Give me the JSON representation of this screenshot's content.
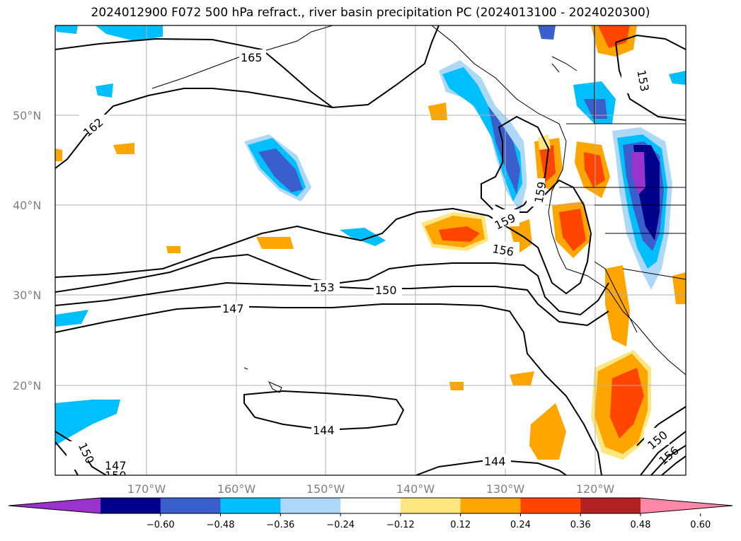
{
  "title": "2024012900 F072 500 hPa refract., river basin precipitation PC (2024013100 - 2024020300)",
  "lat_labels": [
    "50°N",
    "40°N",
    "30°N",
    "20°N"
  ],
  "lon_labels": [
    "170°W",
    "160°W",
    "150°W",
    "140°W",
    "130°W",
    "120°W"
  ],
  "contour_labels": [
    "165",
    "162",
    "153",
    "159",
    "159",
    "156",
    "153",
    "150",
    "147",
    "144",
    "144",
    "150",
    "147",
    "150",
    "150",
    "156"
  ],
  "colorbar": {
    "ticks": [
      "−0.60",
      "−0.48",
      "−0.36",
      "−0.24",
      "−0.12",
      "0.12",
      "0.24",
      "0.36",
      "0.48",
      "0.60"
    ],
    "colors": [
      "#9933cc",
      "#00008b",
      "#3a5fcd",
      "#00bfff",
      "#add8f7",
      "#ffffff",
      "#ffe680",
      "#ffa500",
      "#ff4500",
      "#b22222",
      "#ff88aa"
    ]
  },
  "palette": {
    "neg_low": "#add8f7",
    "neg_mid": "#00bfff",
    "neg_high": "#3a5fcd",
    "neg_max": "#00008b",
    "neg_ext": "#9933cc",
    "pos_low": "#ffe680",
    "pos_mid": "#ffa500",
    "pos_high": "#ff4500"
  }
}
